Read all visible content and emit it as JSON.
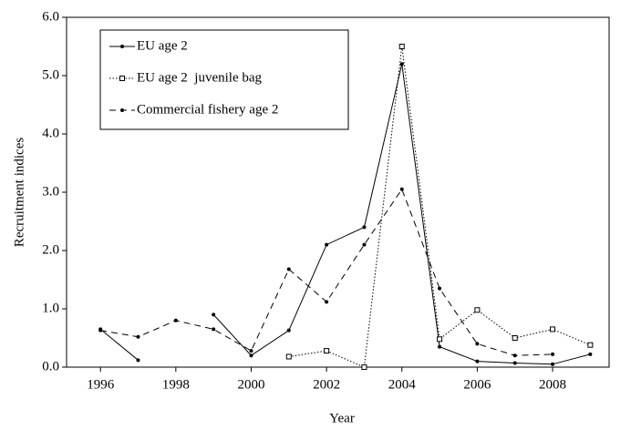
{
  "chart_data": {
    "type": "line",
    "x_label": "Year",
    "y_label": "Recruitment indices",
    "x": [
      1996,
      1997,
      1998,
      1999,
      2000,
      2001,
      2002,
      2003,
      2004,
      2005,
      2006,
      2007,
      2008,
      2009
    ],
    "series": [
      {
        "name": "EU age 2",
        "color": "#000000",
        "style": "solid",
        "marker": "dot",
        "values": [
          0.65,
          0.12,
          null,
          0.9,
          0.2,
          0.63,
          2.1,
          2.4,
          5.2,
          0.35,
          0.1,
          0.07,
          0.05,
          0.22
        ]
      },
      {
        "name": "EU age 2  juvenile bag",
        "color": "#000000",
        "style": "dotted",
        "marker": "square",
        "values": [
          null,
          null,
          null,
          null,
          null,
          0.18,
          0.28,
          0.0,
          5.5,
          0.48,
          0.98,
          0.5,
          0.65,
          0.38
        ]
      },
      {
        "name": "Commercial fishery age 2",
        "color": "#000000",
        "style": "dashed",
        "marker": "dot",
        "values": [
          0.63,
          0.52,
          0.8,
          0.65,
          0.28,
          1.68,
          1.12,
          2.1,
          3.05,
          1.35,
          0.4,
          0.2,
          0.22,
          null
        ]
      }
    ],
    "xlim": [
      1995.1,
      2009.5
    ],
    "xticks": [
      1996,
      1998,
      2000,
      2002,
      2004,
      2006,
      2008
    ],
    "ylim": [
      0,
      6
    ],
    "yticks": [
      {
        "value": 0,
        "label": "0.0"
      },
      {
        "value": 1,
        "label": "1.0"
      },
      {
        "value": 2,
        "label": "2.0"
      },
      {
        "value": 3,
        "label": "3.0"
      },
      {
        "value": 4,
        "label": "4.0"
      },
      {
        "value": 5,
        "label": "5.0"
      },
      {
        "value": 6,
        "label": "6.0"
      }
    ],
    "grid": false,
    "legend": "upper-left"
  }
}
